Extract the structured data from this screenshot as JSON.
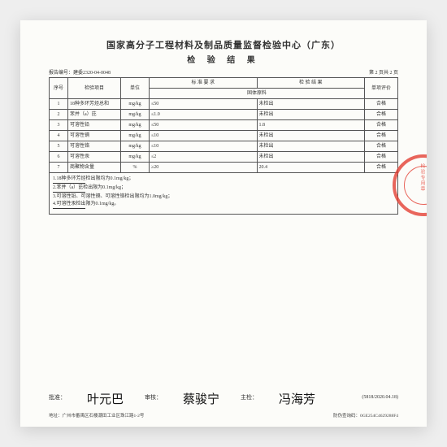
{
  "header": {
    "org": "国家高分子工程材料及制品质量监督检验中心（广东）",
    "doc_title": "检 验 结 果",
    "report_no_label": "报告编号：建委2320-04-0048",
    "page_label": "第 2 页共 2 页"
  },
  "table": {
    "head": {
      "col1": "序号",
      "col2": "检验项目",
      "col3": "单位",
      "col4": "标 准 要 求",
      "col5": "检 验 结 果",
      "col6": "单项评价",
      "subhead": "固体原料"
    },
    "rows": [
      {
        "no": "1",
        "item": "18种多环芳烃总和",
        "unit": "mg/kg",
        "req": "≤50",
        "res": "未检出",
        "verdict": "合格"
      },
      {
        "no": "2",
        "item": "苯并（a）芘",
        "unit": "mg/kg",
        "req": "≤1.0",
        "res": "未检出",
        "verdict": "合格"
      },
      {
        "no": "3",
        "item": "可溶性铅",
        "unit": "mg/kg",
        "req": "≤50",
        "res": "1.8",
        "verdict": "合格"
      },
      {
        "no": "4",
        "item": "可溶性镉",
        "unit": "mg/kg",
        "req": "≤10",
        "res": "未检出",
        "verdict": "合格"
      },
      {
        "no": "5",
        "item": "可溶性铬",
        "unit": "mg/kg",
        "req": "≤10",
        "res": "未检出",
        "verdict": "合格"
      },
      {
        "no": "6",
        "item": "可溶性汞",
        "unit": "mg/kg",
        "req": "≤2",
        "res": "未检出",
        "verdict": "合格"
      },
      {
        "no": "7",
        "item": "商聚物含量",
        "unit": "%",
        "req": "≥20",
        "res": "20.4",
        "verdict": "合格"
      }
    ]
  },
  "notes": {
    "n1": "1.18种多环芳烃检出限均为0.1mg/kg；",
    "n2": "2.苯并（a）芘检出限为0.1mg/kg；",
    "n3": "3.可溶性铅、可溶性镉、可溶性铬检出限均为1.0mg/kg；",
    "n4": "4.可溶性汞检出限为0.1mg/kg。"
  },
  "sign": {
    "approve_label": "批准：",
    "approve_name": "叶元巴",
    "review_label": "审核：",
    "review_name": "蔡骏宁",
    "main_label": "主检：",
    "main_name": "冯海芳",
    "date": "(5818/2020.04.18)"
  },
  "footer": {
    "addr": "地址：广州市番禺区石楼潮田工业区珠江路1-2号",
    "code": "防伪查询码：0GE254C4629288F4"
  }
}
